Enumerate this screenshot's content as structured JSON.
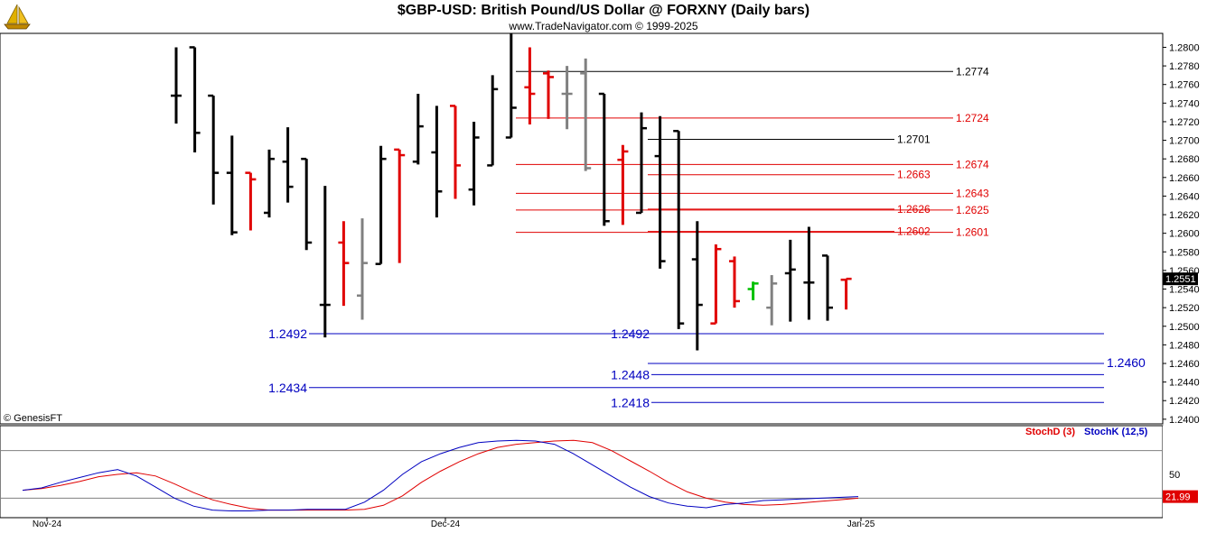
{
  "header": {
    "title": "$GBP-USD:  British Pound/US Dollar @ FORXNY  (Daily bars)",
    "subtitle": "www.TradeNavigator.com © 1999-2025",
    "copyright": "© GenesisFT"
  },
  "chart_data": [
    {
      "type": "ohlc",
      "ylim": [
        1.2395,
        1.2815
      ],
      "yticks": [
        "1.2800",
        "1.2780",
        "1.2760",
        "1.2740",
        "1.2720",
        "1.2700",
        "1.2680",
        "1.2660",
        "1.2640",
        "1.2620",
        "1.2600",
        "1.2580",
        "1.2560",
        "1.2540",
        "1.2520",
        "1.2500",
        "1.2480",
        "1.2460",
        "1.2440",
        "1.2420",
        "1.2400"
      ],
      "last_price": "1.2551",
      "xticks": [
        "Nov-24",
        "Dec-24",
        "Jan-25"
      ],
      "colors": {
        "bar": "#000000",
        "down": "#e00000",
        "up_last": "#00c000",
        "neutral": "#808080",
        "level_black": "#000000",
        "level_red": "#e00000",
        "level_blue": "#0000c0"
      },
      "bars": [
        {
          "o": 1.2748,
          "h": 1.28,
          "l": 1.2718,
          "c": 1.2748,
          "col": "black"
        },
        {
          "o": 1.28,
          "h": 1.28,
          "l": 1.2687,
          "c": 1.2708,
          "col": "black"
        },
        {
          "o": 1.2748,
          "h": 1.2748,
          "l": 1.2631,
          "c": 1.2665,
          "col": "black"
        },
        {
          "o": 1.2665,
          "h": 1.2705,
          "l": 1.2598,
          "c": 1.2601,
          "col": "black"
        },
        {
          "o": 1.2665,
          "h": 1.2665,
          "l": 1.2603,
          "c": 1.2658,
          "col": "red"
        },
        {
          "o": 1.2622,
          "h": 1.269,
          "l": 1.2617,
          "c": 1.268,
          "col": "black"
        },
        {
          "o": 1.2677,
          "h": 1.2714,
          "l": 1.2633,
          "c": 1.265,
          "col": "black"
        },
        {
          "o": 1.268,
          "h": 1.268,
          "l": 1.2582,
          "c": 1.259,
          "col": "black"
        },
        {
          "o": 1.2523,
          "h": 1.2651,
          "l": 1.2488,
          "c": 1.2523,
          "col": "black"
        },
        {
          "o": 1.259,
          "h": 1.2613,
          "l": 1.2522,
          "c": 1.2568,
          "col": "red"
        },
        {
          "o": 1.2533,
          "h": 1.2616,
          "l": 1.2507,
          "c": 1.2568,
          "col": "gray"
        },
        {
          "o": 1.2567,
          "h": 1.2694,
          "l": 1.2567,
          "c": 1.268,
          "col": "black"
        },
        {
          "o": 1.269,
          "h": 1.269,
          "l": 1.2568,
          "c": 1.2684,
          "col": "red"
        },
        {
          "o": 1.2677,
          "h": 1.275,
          "l": 1.2674,
          "c": 1.2715,
          "col": "black"
        },
        {
          "o": 1.2687,
          "h": 1.2737,
          "l": 1.2617,
          "c": 1.2645,
          "col": "black"
        },
        {
          "o": 1.2737,
          "h": 1.2737,
          "l": 1.2637,
          "c": 1.2673,
          "col": "red"
        },
        {
          "o": 1.2647,
          "h": 1.272,
          "l": 1.263,
          "c": 1.2703,
          "col": "black"
        },
        {
          "o": 1.2673,
          "h": 1.277,
          "l": 1.2673,
          "c": 1.2755,
          "col": "black"
        },
        {
          "o": 1.2703,
          "h": 1.2815,
          "l": 1.2703,
          "c": 1.2735,
          "col": "black"
        },
        {
          "o": 1.2757,
          "h": 1.28,
          "l": 1.2717,
          "c": 1.275,
          "col": "red"
        },
        {
          "o": 1.2772,
          "h": 1.2775,
          "l": 1.2723,
          "c": 1.2768,
          "col": "red"
        },
        {
          "o": 1.275,
          "h": 1.278,
          "l": 1.2712,
          "c": 1.275,
          "col": "gray"
        },
        {
          "o": 1.2772,
          "h": 1.2788,
          "l": 1.2667,
          "c": 1.267,
          "col": "gray"
        },
        {
          "o": 1.275,
          "h": 1.275,
          "l": 1.2608,
          "c": 1.2613,
          "col": "black"
        },
        {
          "o": 1.2679,
          "h": 1.2695,
          "l": 1.2609,
          "c": 1.2688,
          "col": "red"
        },
        {
          "o": 1.2622,
          "h": 1.273,
          "l": 1.2622,
          "c": 1.2713,
          "col": "black"
        },
        {
          "o": 1.2683,
          "h": 1.2726,
          "l": 1.2562,
          "c": 1.257,
          "col": "black"
        },
        {
          "o": 1.271,
          "h": 1.271,
          "l": 1.2497,
          "c": 1.2503,
          "col": "black"
        },
        {
          "o": 1.2572,
          "h": 1.2613,
          "l": 1.2474,
          "c": 1.2523,
          "col": "black"
        },
        {
          "o": 1.2503,
          "h": 1.2588,
          "l": 1.2503,
          "c": 1.2583,
          "col": "red"
        },
        {
          "o": 1.257,
          "h": 1.2575,
          "l": 1.252,
          "c": 1.2527,
          "col": "red"
        },
        {
          "o": 1.254,
          "h": 1.2548,
          "l": 1.2528,
          "c": 1.2546,
          "col": "green"
        },
        {
          "o": 1.252,
          "h": 1.2555,
          "l": 1.2501,
          "c": 1.2546,
          "col": "gray"
        },
        {
          "o": 1.2557,
          "h": 1.2593,
          "l": 1.2505,
          "c": 1.2561,
          "col": "black"
        },
        {
          "o": 1.2547,
          "h": 1.2607,
          "l": 1.2507,
          "c": 1.2547,
          "col": "black"
        },
        {
          "o": 1.2576,
          "h": 1.2576,
          "l": 1.2506,
          "c": 1.252,
          "col": "black"
        },
        {
          "o": 1.255,
          "h": 1.255,
          "l": 1.2518,
          "c": 1.2551,
          "col": "red"
        }
      ],
      "levels": [
        {
          "label": "1.2774",
          "value": 1.2774,
          "color": "black",
          "x1": 571,
          "x2": 1055,
          "labelSide": "right"
        },
        {
          "label": "1.2724",
          "value": 1.2724,
          "color": "red",
          "x1": 571,
          "x2": 1055,
          "labelSide": "right"
        },
        {
          "label": "1.2701",
          "value": 1.2701,
          "color": "black",
          "x1": 717,
          "x2": 990,
          "labelSide": "right"
        },
        {
          "label": "1.2674",
          "value": 1.2674,
          "color": "red",
          "x1": 571,
          "x2": 1055,
          "labelSide": "right"
        },
        {
          "label": "1.2663",
          "value": 1.2663,
          "color": "red",
          "x1": 717,
          "x2": 990,
          "labelSide": "right"
        },
        {
          "label": "1.2643",
          "value": 1.2643,
          "color": "red",
          "x1": 571,
          "x2": 1055,
          "labelSide": "right"
        },
        {
          "label": "1.2626",
          "value": 1.2626,
          "color": "red",
          "x1": 717,
          "x2": 990,
          "labelSide": "right"
        },
        {
          "label": "1.2625",
          "value": 1.2625,
          "color": "red",
          "x1": 571,
          "x2": 1055,
          "labelSide": "right"
        },
        {
          "label": "1.2602",
          "value": 1.2602,
          "color": "red",
          "x1": 717,
          "x2": 990,
          "labelSide": "right"
        },
        {
          "label": "1.2601",
          "value": 1.2601,
          "color": "red",
          "x1": 571,
          "x2": 1055,
          "labelSide": "right"
        },
        {
          "label": "1.2492",
          "value": 1.2492,
          "color": "blue",
          "x1": 342,
          "x2": 1222,
          "labelSide": "left"
        },
        {
          "label": "1.2492",
          "value": 1.2492,
          "color": "blue",
          "x1": 721,
          "x2": 721,
          "labelSide": "left"
        },
        {
          "label": "1.2460",
          "value": 1.246,
          "color": "blue",
          "x1": 717,
          "x2": 1222,
          "labelSide": "right"
        },
        {
          "label": "1.2448",
          "value": 1.2448,
          "color": "blue",
          "x1": 721,
          "x2": 1222,
          "labelSide": "left"
        },
        {
          "label": "1.2434",
          "value": 1.2434,
          "color": "blue",
          "x1": 342,
          "x2": 1222,
          "labelSide": "left"
        },
        {
          "label": "1.2418",
          "value": 1.2418,
          "color": "blue",
          "x1": 721,
          "x2": 1222,
          "labelSide": "left"
        }
      ]
    },
    {
      "type": "line",
      "legend": [
        {
          "name": "StochD (3)",
          "color": "#e00000"
        },
        {
          "name": "StochK (12,5)",
          "color": "#0000c0"
        }
      ],
      "ylim": [
        0,
        100
      ],
      "yticks": [
        "50"
      ],
      "ref_lines": [
        80,
        20
      ],
      "last_value": "21.99",
      "series": [
        {
          "name": "StochD (3)",
          "color": "#e00000",
          "values": [
            30,
            32,
            36,
            41,
            47,
            50,
            52,
            48,
            38,
            27,
            18,
            12,
            7,
            5,
            5,
            5,
            5,
            5,
            6,
            11,
            23,
            40,
            54,
            66,
            76,
            84,
            88,
            90,
            92,
            93,
            90,
            80,
            67,
            54,
            40,
            28,
            20,
            15,
            12,
            11,
            12,
            14,
            16,
            18,
            20
          ]
        },
        {
          "name": "StochK (12,5)",
          "color": "#0000c0",
          "values": [
            30,
            33,
            40,
            46,
            52,
            56,
            48,
            34,
            20,
            10,
            5,
            4,
            4,
            5,
            5,
            6,
            6,
            6,
            15,
            30,
            50,
            66,
            76,
            84,
            90,
            92,
            93,
            92,
            88,
            76,
            62,
            48,
            34,
            22,
            14,
            10,
            8,
            12,
            14,
            17,
            18,
            19,
            20,
            21,
            22
          ]
        }
      ]
    }
  ]
}
